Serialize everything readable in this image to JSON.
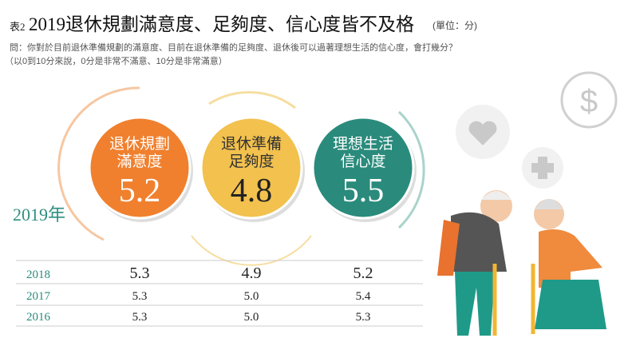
{
  "header": {
    "prefix": "表2",
    "title": "2019退休規劃滿意度、足夠度、信心度皆不及格",
    "unit": "(單位：分)",
    "question": "問：你對於目前退休準備規劃的滿意度、目前在退休準備的足夠度、退休後可以過著理想生活的信心度，會打幾分？",
    "note": "（以0到10分來說，0分是非常不滿意、10分是非常滿意）"
  },
  "year_label": "2019年",
  "circles": [
    {
      "label": [
        "退休規劃",
        "滿意度"
      ],
      "score": "5.2"
    },
    {
      "label": [
        "退休準備",
        "足夠度"
      ],
      "score": "4.8"
    },
    {
      "label": [
        "理想生活",
        "信心度"
      ],
      "score": "5.5"
    }
  ],
  "table": {
    "rows": [
      [
        "2018",
        "5.3",
        "4.9",
        "5.2"
      ],
      [
        "2017",
        "5.3",
        "5.0",
        "5.4"
      ],
      [
        "2016",
        "5.3",
        "5.0",
        "5.3"
      ]
    ]
  }
}
